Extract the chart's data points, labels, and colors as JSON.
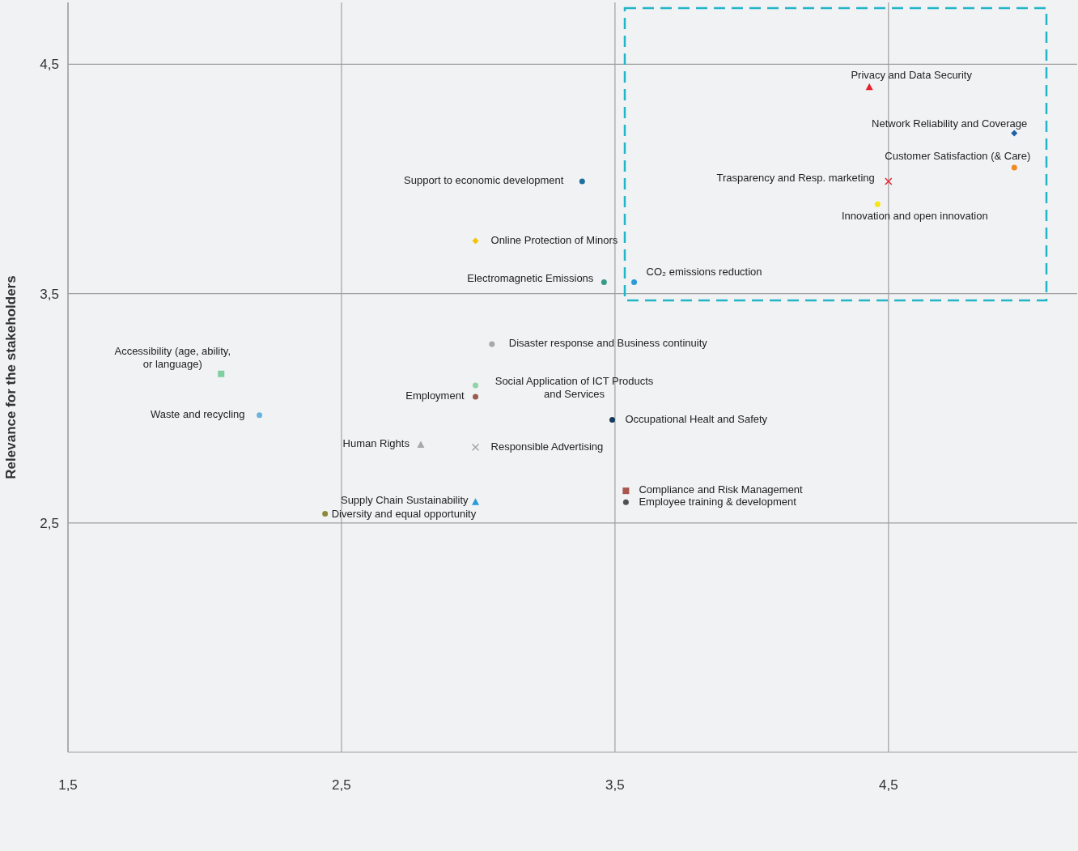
{
  "chart_data": {
    "type": "scatter",
    "ylabel": "Relevance for the stakeholders",
    "xlim": [
      1.5,
      5.19
    ],
    "ylim": [
      1.5,
      4.77
    ],
    "xticks": [
      {
        "value": 1.5,
        "label": "1,5"
      },
      {
        "value": 2.5,
        "label": "2,5"
      },
      {
        "value": 3.5,
        "label": "3,5"
      },
      {
        "value": 4.5,
        "label": "4,5"
      }
    ],
    "yticks": [
      {
        "value": 2.5,
        "label": "2,5"
      },
      {
        "value": 3.5,
        "label": "3,5"
      },
      {
        "value": 4.5,
        "label": "4,5"
      }
    ],
    "grid": true,
    "series": [
      {
        "name": "Privacy and Data Security",
        "color": "#e8202a",
        "marker": "triangle",
        "x": [
          4.43
        ],
        "values": [
          4.4
        ]
      },
      {
        "name": "Network Reliability and Coverage",
        "color": "#1f5fa8",
        "marker": "diamond",
        "x": [
          4.96
        ],
        "values": [
          4.2
        ]
      },
      {
        "name": "Customer Satisfaction (& Care)",
        "color": "#f08a24",
        "marker": "circle",
        "x": [
          4.96
        ],
        "values": [
          4.05
        ]
      },
      {
        "name": "Trasparency and Resp. marketing",
        "color": "#e8202a",
        "marker": "cross",
        "x": [
          4.5
        ],
        "values": [
          3.99
        ]
      },
      {
        "name": "Innovation and open innovation",
        "color": "#f5e614",
        "marker": "circle",
        "x": [
          4.46
        ],
        "values": [
          3.89
        ]
      },
      {
        "name": "Support to economic development",
        "color": "#1f6fa0",
        "marker": "circle",
        "x": [
          3.38
        ],
        "values": [
          3.99
        ]
      },
      {
        "name": "Online Protection of Minors",
        "color": "#f5c400",
        "marker": "diamond",
        "x": [
          2.99
        ],
        "values": [
          3.73
        ]
      },
      {
        "name": "Electromagnetic Emissions",
        "color": "#3a9a8a",
        "marker": "circle",
        "x": [
          3.46
        ],
        "values": [
          3.55
        ]
      },
      {
        "name": "CO₂ emissions reduction",
        "color": "#2a9ad8",
        "marker": "circle",
        "x": [
          3.57
        ],
        "values": [
          3.55
        ]
      },
      {
        "name": "Disaster response and Business continuity",
        "color": "#a8a8a8",
        "marker": "circle",
        "x": [
          3.05
        ],
        "values": [
          3.28
        ]
      },
      {
        "name": "Accessibility (age, ability,\nor language)",
        "color": "#7fcfa0",
        "marker": "square",
        "x": [
          2.06
        ],
        "values": [
          3.15
        ]
      },
      {
        "name": "Social Application of ICT Products\nand Services",
        "color": "#8ed4a8",
        "marker": "circle",
        "x": [
          2.99
        ],
        "values": [
          3.1
        ]
      },
      {
        "name": "Employment",
        "color": "#9a5a50",
        "marker": "circle",
        "x": [
          2.99
        ],
        "values": [
          3.05
        ]
      },
      {
        "name": "Waste and recycling",
        "color": "#6ab4dc",
        "marker": "circle",
        "x": [
          2.2
        ],
        "values": [
          2.97
        ]
      },
      {
        "name": "Occupational Healt and Safety",
        "color": "#163a5a",
        "marker": "circle",
        "x": [
          3.49
        ],
        "values": [
          2.95
        ]
      },
      {
        "name": "Human Rights",
        "color": "#a8a8a8",
        "marker": "triangle",
        "x": [
          2.79
        ],
        "values": [
          2.84
        ]
      },
      {
        "name": "Responsible Advertising",
        "color": "#9a9a9a",
        "marker": "cross",
        "x": [
          2.99
        ],
        "values": [
          2.83
        ]
      },
      {
        "name": "Compliance and Risk Management",
        "color": "#a8564e",
        "marker": "square",
        "x": [
          3.54
        ],
        "values": [
          2.64
        ]
      },
      {
        "name": "Employee training & development",
        "color": "#505050",
        "marker": "circle",
        "x": [
          3.54
        ],
        "values": [
          2.59
        ]
      },
      {
        "name": "Supply Chain Sustainability",
        "color": "#2a9ad8",
        "marker": "triangle",
        "x": [
          2.99
        ],
        "values": [
          2.59
        ]
      },
      {
        "name": "Diversity and equal opportunity",
        "color": "#8a8a3a",
        "marker": "circle",
        "x": [
          2.44
        ],
        "values": [
          2.54
        ]
      }
    ]
  }
}
